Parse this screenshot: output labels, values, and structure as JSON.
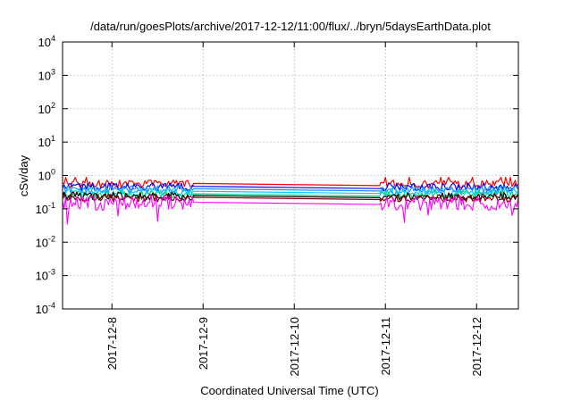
{
  "chart_data": {
    "type": "line",
    "title": "/data/run/goesPlots/archive/2017-12-12/11:00/flux/../bryn/5daysEarthData.plot",
    "xlabel": "Coordinated Universal Time (UTC)",
    "ylabel": "cSv/day",
    "yscale": "log",
    "ylim": [
      0.0001,
      10000
    ],
    "y_ticks": [
      {
        "value": 0.0001,
        "base": "10",
        "exp": "-4"
      },
      {
        "value": 0.001,
        "base": "10",
        "exp": "-3"
      },
      {
        "value": 0.01,
        "base": "10",
        "exp": "-2"
      },
      {
        "value": 0.1,
        "base": "10",
        "exp": "-1"
      },
      {
        "value": 1,
        "base": "10",
        "exp": "0"
      },
      {
        "value": 10,
        "base": "10",
        "exp": "1"
      },
      {
        "value": 100,
        "base": "10",
        "exp": "2"
      },
      {
        "value": 1000,
        "base": "10",
        "exp": "3"
      },
      {
        "value": 10000,
        "base": "10",
        "exp": "4"
      }
    ],
    "xlim": [
      "2017-12-07 11:00",
      "2017-12-12 11:00"
    ],
    "x_ticks": [
      "2017-12-8",
      "2017-12-9",
      "2017-12-10",
      "2017-12-11",
      "2017-12-12"
    ],
    "x_tick_dates": [
      "2017-12-08 00:00",
      "2017-12-09 00:00",
      "2017-12-10 00:00",
      "2017-12-11 00:00",
      "2017-12-12 00:00"
    ],
    "grid": true,
    "data_gap": [
      "2017-12-08 21:30",
      "2017-12-10 22:30"
    ],
    "series": [
      {
        "color": "#ff0000",
        "level": 0.55
      },
      {
        "color": "#0000ff",
        "level": 0.45
      },
      {
        "color": "#1e90ff",
        "level": 0.38
      },
      {
        "color": "#00ccff",
        "level": 0.32
      },
      {
        "color": "#00dd88",
        "level": 0.27
      },
      {
        "color": "#000000",
        "level": 0.24
      },
      {
        "color": "#800000",
        "level": 0.21
      },
      {
        "color": "#ff00ff",
        "level": 0.15
      }
    ]
  }
}
